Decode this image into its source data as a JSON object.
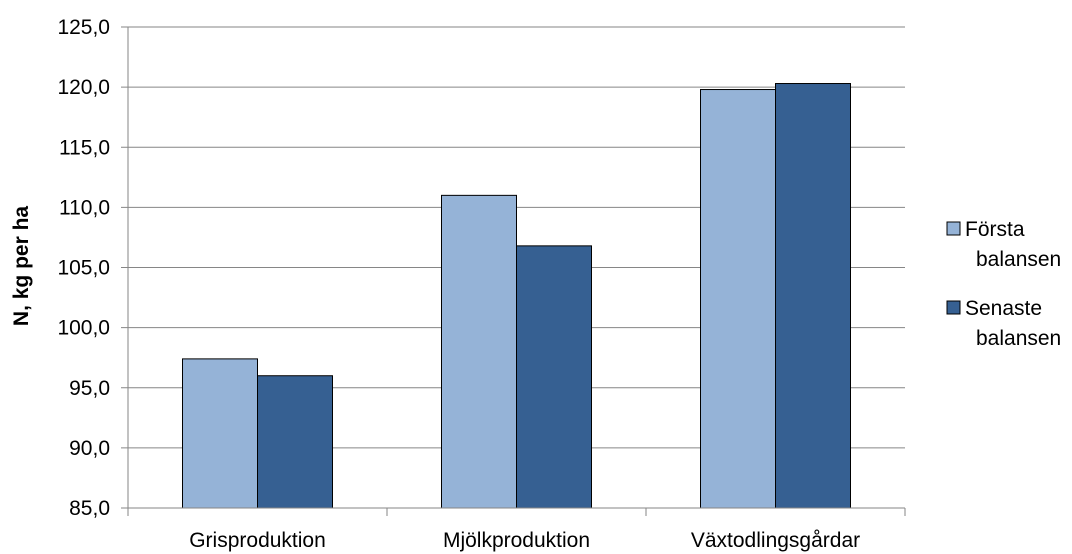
{
  "chart_data": {
    "type": "bar",
    "categories": [
      "Grisproduktion",
      "Mjölkproduktion",
      "Växtodlingsgårdar"
    ],
    "series": [
      {
        "name": "Första balansen",
        "legend_lines": [
          "Första",
          "balansen"
        ],
        "color": "#95B3D7",
        "values": [
          97.4,
          111.0,
          119.8
        ]
      },
      {
        "name": "Senaste balansen",
        "legend_lines": [
          "Senaste",
          "balansen"
        ],
        "color": "#366092",
        "values": [
          96.0,
          106.8,
          120.3
        ]
      }
    ],
    "ylabel": "N, kg per ha",
    "ylim": [
      85,
      125
    ],
    "yticks": [
      "85,0",
      "90,0",
      "95,0",
      "100,0",
      "105,0",
      "110,0",
      "115,0",
      "120,0",
      "125,0"
    ],
    "grid": true,
    "legend": "right"
  }
}
